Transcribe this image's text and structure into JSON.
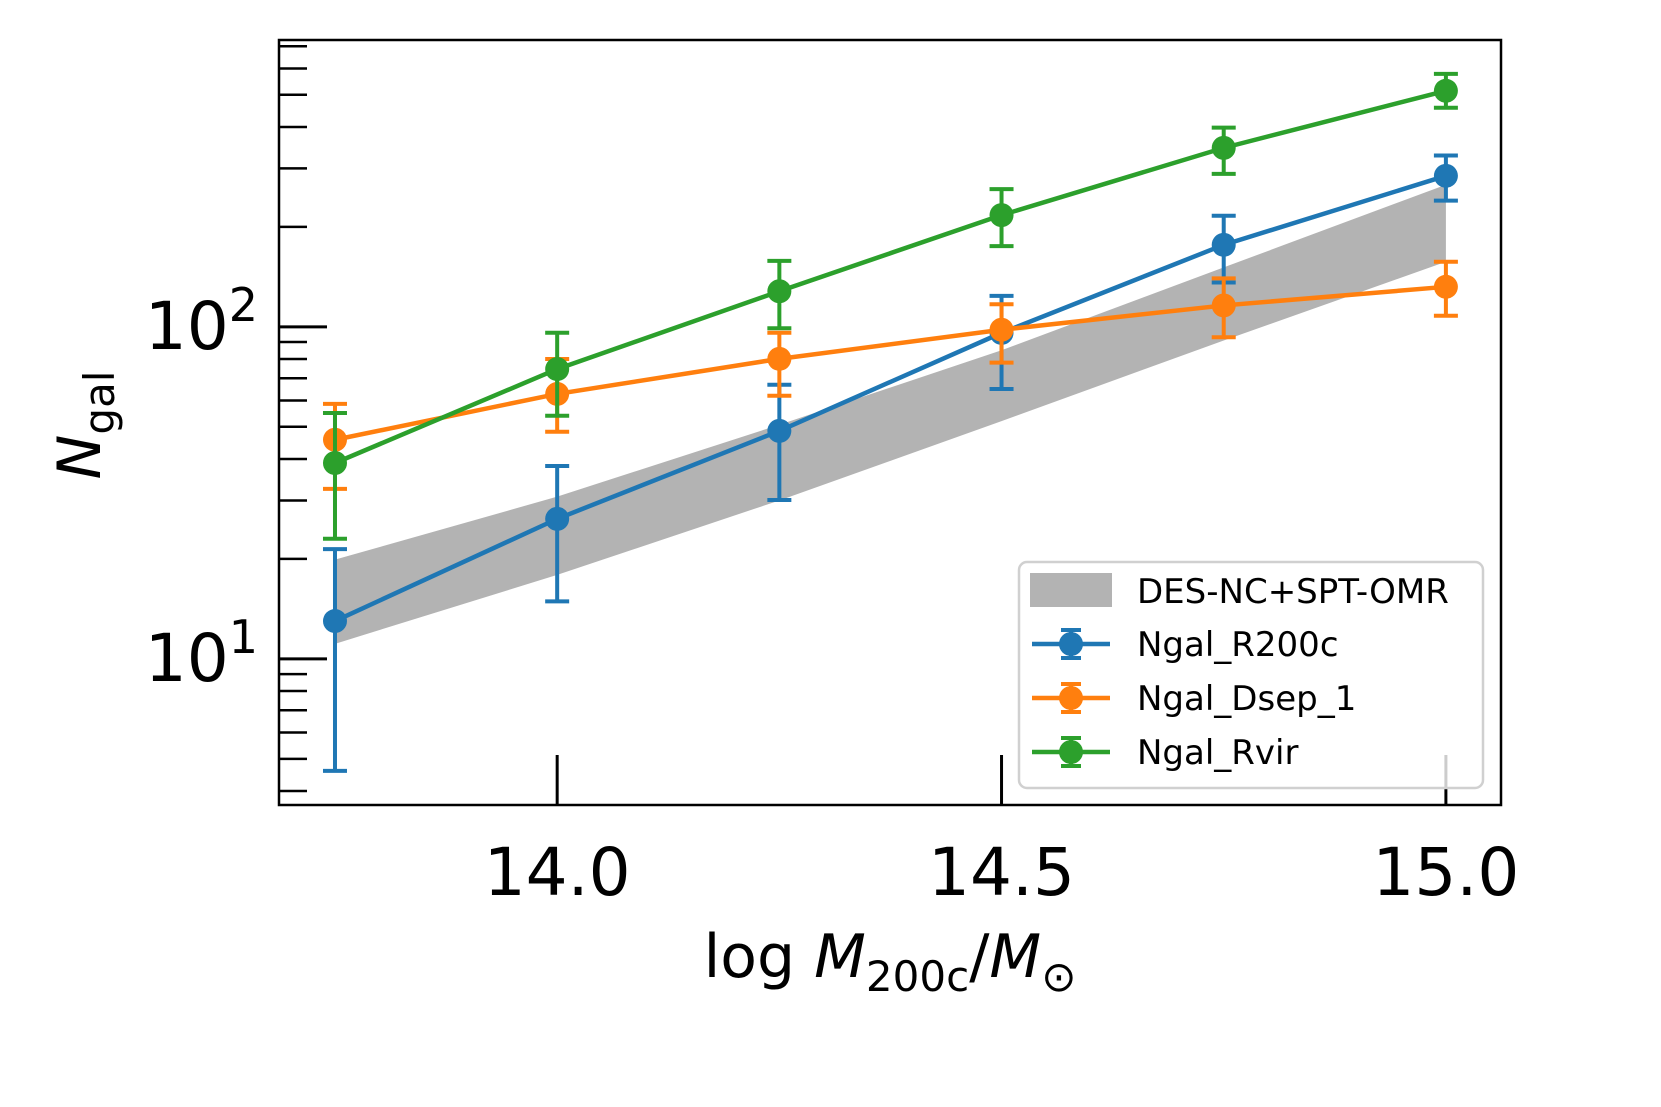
{
  "chart_data": {
    "type": "line",
    "title": "",
    "xlabel": {
      "prefix": "log ",
      "main": "M",
      "sub": "200c",
      "sep": "/",
      "main2": "M",
      "sub2": "⊙"
    },
    "ylabel": {
      "main": "N",
      "sub": "gal"
    },
    "xlim": [
      13.687,
      15.062
    ],
    "ylim": [
      3.63,
      731
    ],
    "yscale": "log",
    "xticks": [
      {
        "v": 14.0,
        "label": "14.0"
      },
      {
        "v": 14.5,
        "label": "14.5"
      },
      {
        "v": 15.0,
        "label": "15.0"
      }
    ],
    "yticks": [
      {
        "v": 10,
        "base": "10",
        "exp": "1"
      },
      {
        "v": 100,
        "base": "10",
        "exp": "2"
      }
    ],
    "grid": false,
    "legend_placement": "lower-right",
    "x": [
      13.75,
      14.0,
      14.25,
      14.5,
      14.75,
      15.0
    ],
    "band": {
      "name": "DES-NC+SPT-OMR",
      "color": "#b3b3b3",
      "upper": [
        19.9,
        30.8,
        50.7,
        85,
        151,
        268
      ],
      "lower": [
        11.1,
        17.9,
        30,
        52,
        91,
        157
      ]
    },
    "series": [
      {
        "name": "Ngal_R200c",
        "color": "#1f77b4",
        "values": [
          13.0,
          26.4,
          48.6,
          95.9,
          176.6,
          285
        ],
        "err_high": [
          21.4,
          38.1,
          66.9,
          124,
          216,
          328
        ],
        "err_low": [
          4.6,
          14.9,
          30.1,
          65,
          136,
          240
        ]
      },
      {
        "name": "Ngal_Dsep_1",
        "color": "#ff7f0e",
        "values": [
          45.7,
          62.8,
          80.1,
          98,
          116,
          132
        ],
        "err_high": [
          58.6,
          80,
          96,
          117,
          140,
          157
        ],
        "err_low": [
          32.5,
          48.3,
          62,
          78,
          93,
          108
        ]
      },
      {
        "name": "Ngal_Rvir",
        "color": "#2ca02c",
        "values": [
          38.9,
          74.6,
          128,
          217,
          346,
          514
        ],
        "err_high": [
          55,
          96,
          158,
          260,
          398,
          578
        ],
        "err_low": [
          23,
          54,
          99,
          175,
          289,
          457
        ]
      }
    ]
  }
}
